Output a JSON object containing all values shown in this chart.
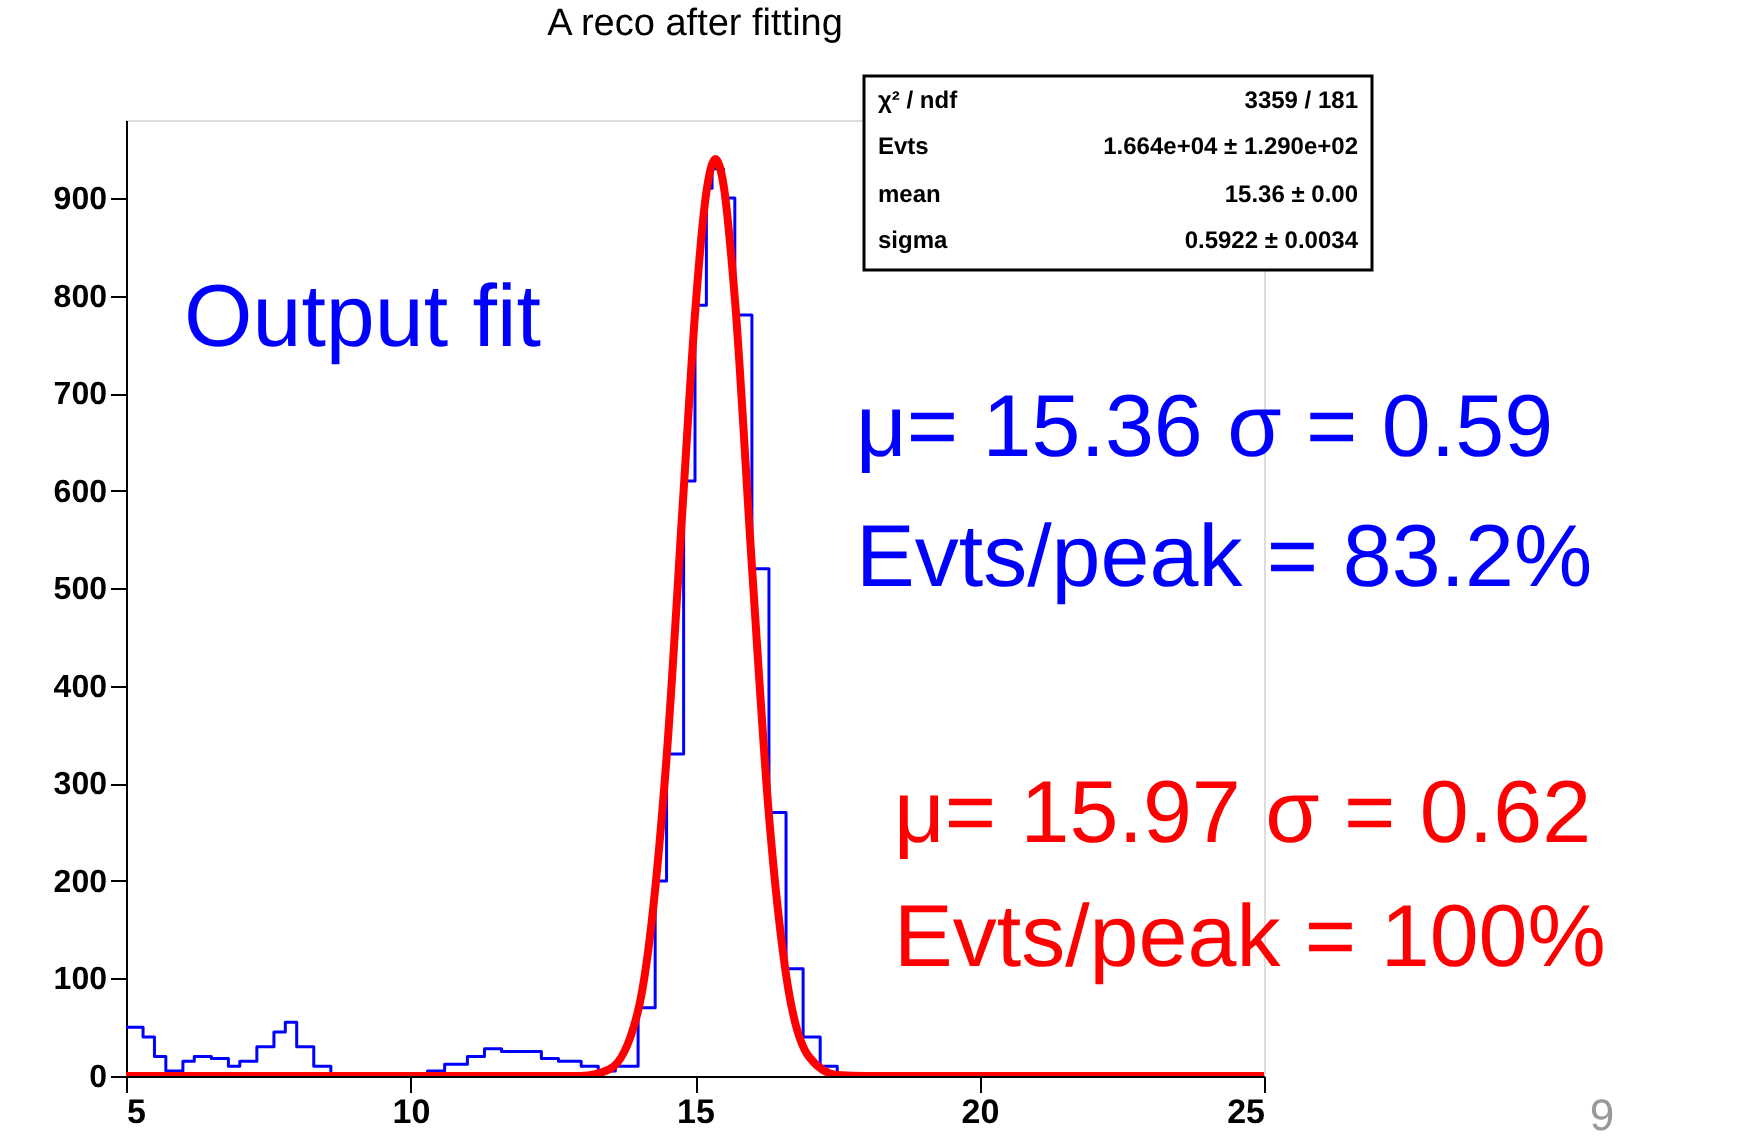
{
  "chart_data": {
    "type": "step",
    "title": "A reco after fitting",
    "series": [
      {
        "color": "#0000ff",
        "x": [
          5.0,
          5.3,
          5.5,
          5.7,
          6.0,
          6.2,
          6.5,
          6.8,
          7.0,
          7.3,
          7.6,
          7.8,
          8.0,
          8.3,
          8.6,
          9.0,
          10.0,
          10.3,
          10.6,
          11.0,
          11.3,
          11.6,
          12.0,
          12.3,
          12.6,
          13.0,
          13.3,
          13.6,
          14.0,
          14.3,
          14.5,
          14.8,
          15.0,
          15.2,
          15.3,
          15.4,
          15.5,
          15.7,
          16.0,
          16.3,
          16.6,
          16.9,
          17.2,
          17.5,
          18.0,
          25.0
        ],
        "values": [
          50,
          40,
          20,
          5,
          15,
          20,
          18,
          10,
          15,
          30,
          45,
          55,
          30,
          10,
          2,
          0,
          0,
          5,
          12,
          20,
          28,
          25,
          25,
          18,
          15,
          10,
          5,
          10,
          70,
          200,
          330,
          610,
          790,
          910,
          930,
          930,
          900,
          780,
          520,
          270,
          110,
          40,
          10,
          2,
          0,
          0
        ]
      },
      {
        "type": "line",
        "color": "#ff0000",
        "x": [
          5.0,
          13.0,
          13.5,
          14.0,
          14.5,
          14.8,
          15.0,
          15.2,
          15.36,
          15.5,
          15.7,
          16.0,
          16.3,
          16.6,
          17.0,
          17.5,
          18.0,
          25.0
        ],
        "values": [
          0,
          0,
          7,
          67,
          326,
          600,
          781,
          906,
          940,
          914,
          797,
          523,
          267,
          104,
          20,
          1,
          0,
          0
        ]
      }
    ],
    "xlim": [
      5,
      25
    ],
    "xticks": [
      5,
      10,
      15,
      20,
      25
    ],
    "ylim": [
      0,
      980
    ],
    "yticks": [
      0,
      100,
      200,
      300,
      400,
      500,
      600,
      700,
      800,
      900
    ],
    "grid": false,
    "annotations": [
      "χ² / ndf",
      "3359 / 181",
      "Evts",
      "1.664e+04 ± 1.290e+02",
      "mean",
      "15.36 ± 0.00",
      "sigma",
      "0.5922 ± 0.0034",
      "Output fit",
      "μ= 15.36  σ = 0.59",
      "Evts/peak = 83.2%",
      "μ= 15.97 σ = 0.62",
      "Evts/peak = 100%",
      "9"
    ]
  }
}
